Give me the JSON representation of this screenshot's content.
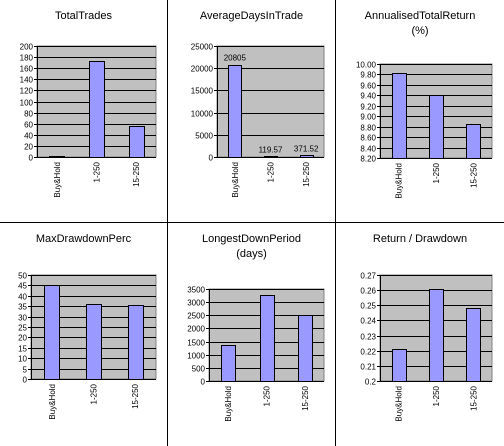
{
  "chart_data": [
    {
      "type": "bar",
      "title": [
        "TotalTrades"
      ],
      "categories": [
        "Buy&Hold",
        "1-250",
        "15-250"
      ],
      "values": [
        1,
        173,
        55
      ],
      "ylim": [
        0,
        200
      ],
      "yticks": [
        "0",
        "20",
        "40",
        "60",
        "80",
        "100",
        "120",
        "140",
        "160",
        "180",
        "200"
      ],
      "data_labels": [],
      "grid": true
    },
    {
      "type": "bar",
      "title": [
        "AverageDaysInTrade"
      ],
      "categories": [
        "Buy&Hold",
        "1-250",
        "15-250"
      ],
      "values": [
        20805,
        119.57,
        371.52
      ],
      "ylim": [
        0,
        25000
      ],
      "yticks": [
        "0",
        "5000",
        "10000",
        "15000",
        "20000",
        "25000"
      ],
      "data_labels": [
        "20805",
        "119.57",
        "371.52"
      ],
      "grid": true
    },
    {
      "type": "bar",
      "title": [
        "AnnualisedTotalReturn",
        "(%)"
      ],
      "categories": [
        "Buy&Hold",
        "1-250",
        "15-250"
      ],
      "values": [
        9.83,
        9.41,
        8.86
      ],
      "ylim": [
        8.2,
        10.0
      ],
      "yticks": [
        "8.20",
        "8.40",
        "8.60",
        "8.80",
        "9.00",
        "9.20",
        "9.40",
        "9.60",
        "9.80",
        "10.00"
      ],
      "data_labels": [],
      "grid": true
    },
    {
      "type": "bar",
      "title": [
        "MaxDrawdownPerc"
      ],
      "categories": [
        "Buy&Hold",
        "1-250",
        "15-250"
      ],
      "values": [
        45,
        36,
        35.5
      ],
      "ylim": [
        0,
        50
      ],
      "yticks": [
        "0",
        "5",
        "10",
        "15",
        "20",
        "25",
        "30",
        "35",
        "40",
        "45",
        "50"
      ],
      "data_labels": [],
      "grid": true
    },
    {
      "type": "bar",
      "title": [
        "LongestDownPeriod",
        "(days)"
      ],
      "categories": [
        "Buy&Hold",
        "1-250",
        "15-250"
      ],
      "values": [
        1380,
        3270,
        2500
      ],
      "ylim": [
        0,
        3500
      ],
      "yticks": [
        "0",
        "500",
        "1000",
        "1500",
        "2000",
        "2500",
        "3000",
        "3500"
      ],
      "data_labels": [],
      "grid": true
    },
    {
      "type": "bar",
      "title": [
        "Return / Drawdown"
      ],
      "categories": [
        "Buy&Hold",
        "1-250",
        "15-250"
      ],
      "values": [
        0.221,
        0.261,
        0.248
      ],
      "ylim": [
        0.2,
        0.27
      ],
      "yticks": [
        "0.2",
        "0.21",
        "0.22",
        "0.23",
        "0.24",
        "0.25",
        "0.26",
        "0.27"
      ],
      "data_labels": [],
      "grid": true
    }
  ],
  "colors": {
    "plot_bg": "#c0c0c0",
    "bar_fill": "#9999ff",
    "bar_stroke": "#000000",
    "grid": "#000000",
    "text": "#000000"
  }
}
